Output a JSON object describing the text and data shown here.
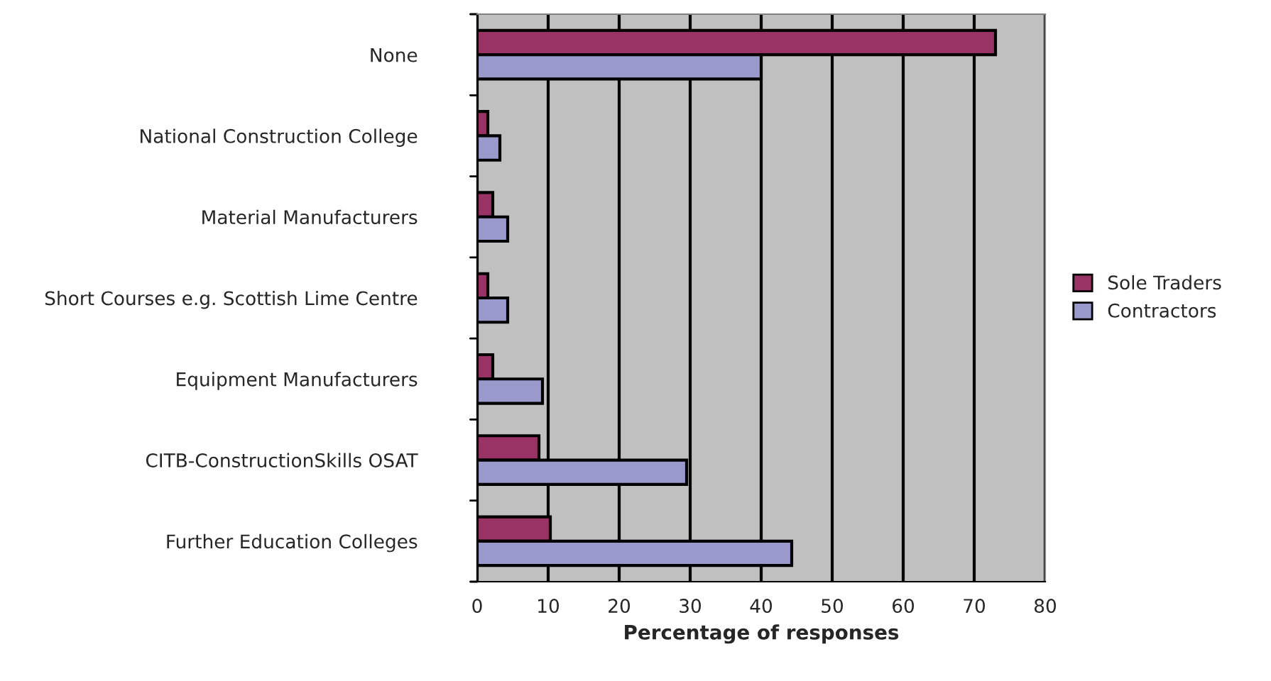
{
  "chart_data": {
    "type": "bar",
    "orientation": "horizontal",
    "xlabel": "Percentage of responses",
    "categories": [
      "None",
      "National Construction College",
      "Material Manufacturers",
      "Short Courses e.g. Scottish Lime Centre",
      "Equipment Manufacturers",
      "CITB-ConstructionSkills OSAT",
      "Further Education Colleges"
    ],
    "series": [
      {
        "name": "Sole Traders",
        "color": "#993366",
        "values": [
          73,
          1.5,
          2.2,
          1.5,
          2.2,
          8.7,
          10.3
        ]
      },
      {
        "name": "Contractors",
        "color": "#9999cc",
        "values": [
          40,
          3.2,
          4.3,
          4.3,
          9.2,
          29.5,
          44.3
        ]
      }
    ],
    "xlim": [
      0,
      80
    ],
    "xticks": [
      0,
      10,
      20,
      30,
      40,
      50,
      60,
      70,
      80
    ],
    "grid": "x",
    "legend": "right"
  }
}
